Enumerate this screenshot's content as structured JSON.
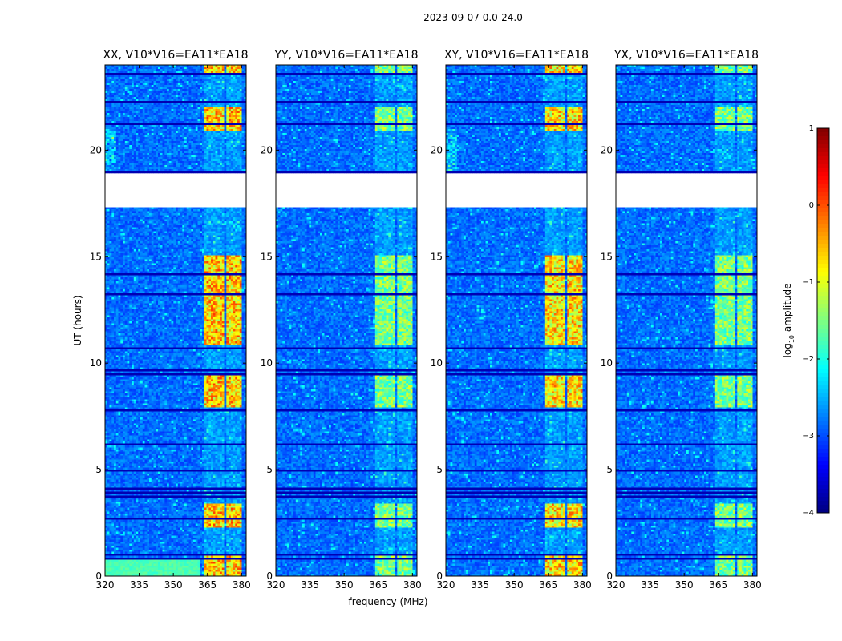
{
  "figure": {
    "suptitle": "2023-09-07 0.0-24.0",
    "xlabel": "frequency (MHz)",
    "ylabel": "UT (hours)",
    "colorbar_label_prefix": "log",
    "colorbar_label_subscript": "10",
    "colorbar_label_suffix": " amplitude"
  },
  "chart_data": {
    "type": "heatmap",
    "description_units": "x: frequency in MHz, y: UT hours, color: log10 amplitude",
    "xlim": [
      320,
      382
    ],
    "ylim": [
      0,
      24
    ],
    "xticks": [
      320,
      335,
      350,
      365,
      380
    ],
    "yticks": [
      0,
      5,
      10,
      15,
      20
    ],
    "colorbar": {
      "min": -4,
      "max": 1,
      "ticks": [
        1,
        0,
        -1,
        -2,
        -3,
        -4
      ],
      "colormap": "jet"
    },
    "panels": [
      {
        "title": "XX, V10*V16=EA11*EA18",
        "rfi_level": 0.75
      },
      {
        "title": "YY, V10*V16=EA11*EA18",
        "rfi_level": 0.55
      },
      {
        "title": "XY, V10*V16=EA11*EA18",
        "rfi_level": 0.72
      },
      {
        "title": "YX, V10*V16=EA11*EA18",
        "rfi_level": 0.55
      }
    ],
    "rfi_band_mhz": [
      364,
      380
    ],
    "rfi_columns_mhz": [
      [
        364,
        368
      ],
      [
        368.5,
        372.5
      ],
      [
        373,
        377
      ],
      [
        377.5,
        380
      ]
    ],
    "blank_intervals_hours": [
      [
        17.3,
        18.9
      ]
    ],
    "flagged_gap_hours": [
      0.85,
      1.05,
      2.7,
      3.7,
      3.9,
      4.1,
      5.0,
      6.2,
      7.8,
      9.5,
      9.7,
      10.7,
      13.2,
      14.2,
      19.0,
      21.2,
      22.3,
      23.6
    ]
  }
}
